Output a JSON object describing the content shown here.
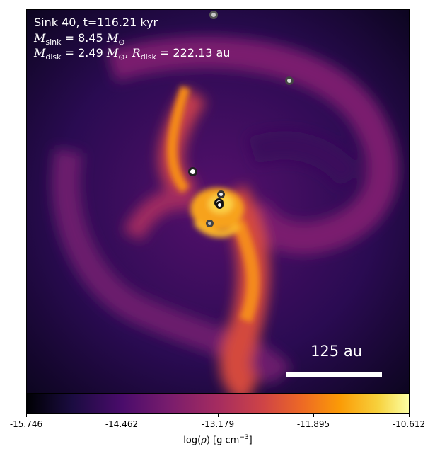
{
  "title": "Sink 40, t=116.21 kyr",
  "sink_mass": {
    "symbol": "M",
    "sub": "sink",
    "value": "= 8.45",
    "unit": "M",
    "unit_sub": "⊙"
  },
  "disk": {
    "symbol": "M",
    "sub": "disk",
    "value": "= 2.49",
    "unit": "M",
    "unit_sub": "⊙",
    "sep": ",",
    "r_symbol": "R",
    "r_sub": "disk",
    "r_value": "= 222.13 au"
  },
  "scale_bar_label": "125 au",
  "colorbar": {
    "ticks": [
      "-15.746",
      "-14.462",
      "-13.179",
      "-11.895",
      "-10.612"
    ],
    "label_pre": "log(",
    "label_rho": "ρ",
    "label_post": ") [g cm",
    "label_exp": "−3",
    "label_end": "]",
    "colormap": "inferno"
  },
  "sink_markers": [
    {
      "kind": "gray"
    },
    {
      "kind": "gray"
    },
    {
      "kind": "white"
    },
    {
      "kind": "white-small"
    },
    {
      "kind": "white"
    },
    {
      "kind": "white"
    },
    {
      "kind": "gray"
    }
  ]
}
